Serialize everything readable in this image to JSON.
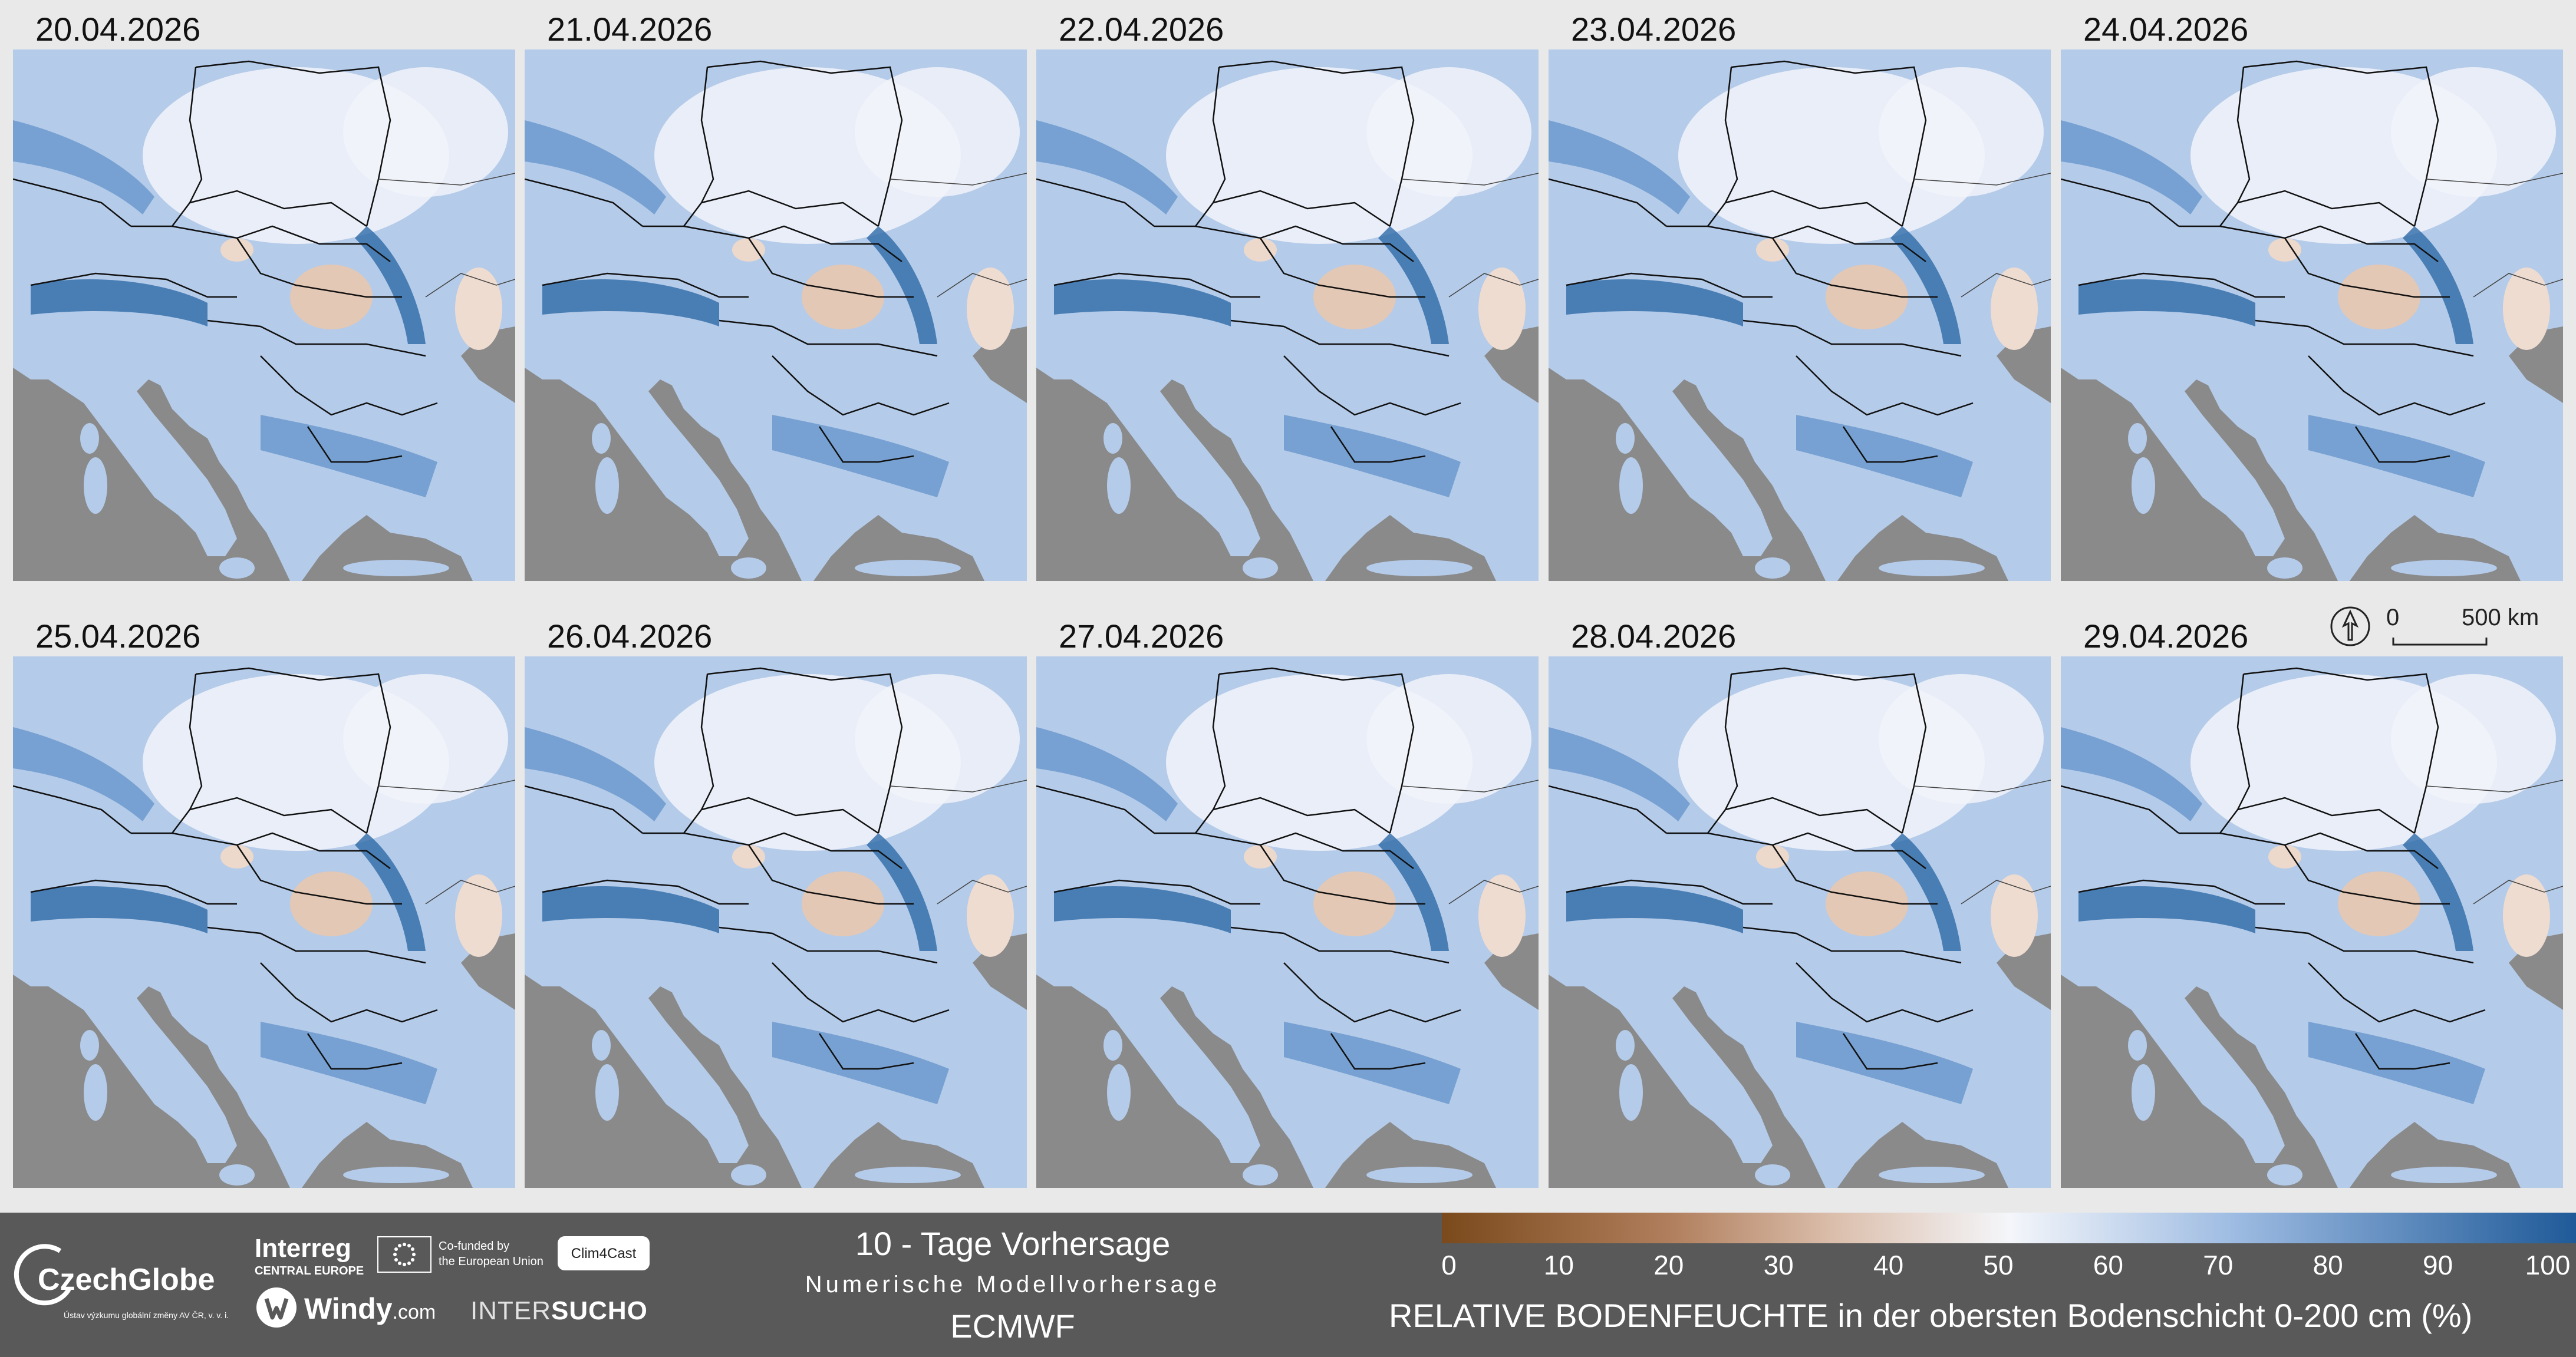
{
  "panels": [
    {
      "date": "20.04.2026"
    },
    {
      "date": "21.04.2026"
    },
    {
      "date": "22.04.2026"
    },
    {
      "date": "23.04.2026"
    },
    {
      "date": "24.04.2026"
    },
    {
      "date": "25.04.2026"
    },
    {
      "date": "26.04.2026"
    },
    {
      "date": "27.04.2026"
    },
    {
      "date": "28.04.2026"
    },
    {
      "date": "29.04.2026"
    }
  ],
  "scale": {
    "zero": "0",
    "distance": "500 km"
  },
  "footer": {
    "czechglobe": "CzechGlobe",
    "czechglobe_sub": "Ústav výzkumu globální změny AV ČR, v. v. i.",
    "interreg": "Interreg",
    "interreg_sub": "CENTRAL EUROPE",
    "cofunded_line1": "Co-funded by",
    "cofunded_line2": "the European Union",
    "clim4cast": "Clim4Cast",
    "windy": "Windy",
    "windy_suffix": ".com",
    "intersucho_a": "INTER",
    "intersucho_b": "SUCHO",
    "title": "10 - Tage Vorhersage",
    "subtitle": "Numerische Modellvorhersage",
    "model": "ECMWF"
  },
  "legend": {
    "ticks": [
      "0",
      "10",
      "20",
      "30",
      "40",
      "50",
      "60",
      "70",
      "80",
      "90",
      "100"
    ],
    "title": "RELATIVE BODENFEUCHTE in der obersten Bodenschicht 0-200 cm (%)",
    "colors": {
      "dry": "#7a4a1c",
      "mid_dry": "#e8d3c6",
      "neutral": "#f4f6fa",
      "mid_wet": "#8fb2de",
      "wet": "#1f5a98"
    }
  },
  "map_colors": {
    "background": "#8a8a8a",
    "land": "#a9c3e6",
    "borders": "#111111"
  }
}
